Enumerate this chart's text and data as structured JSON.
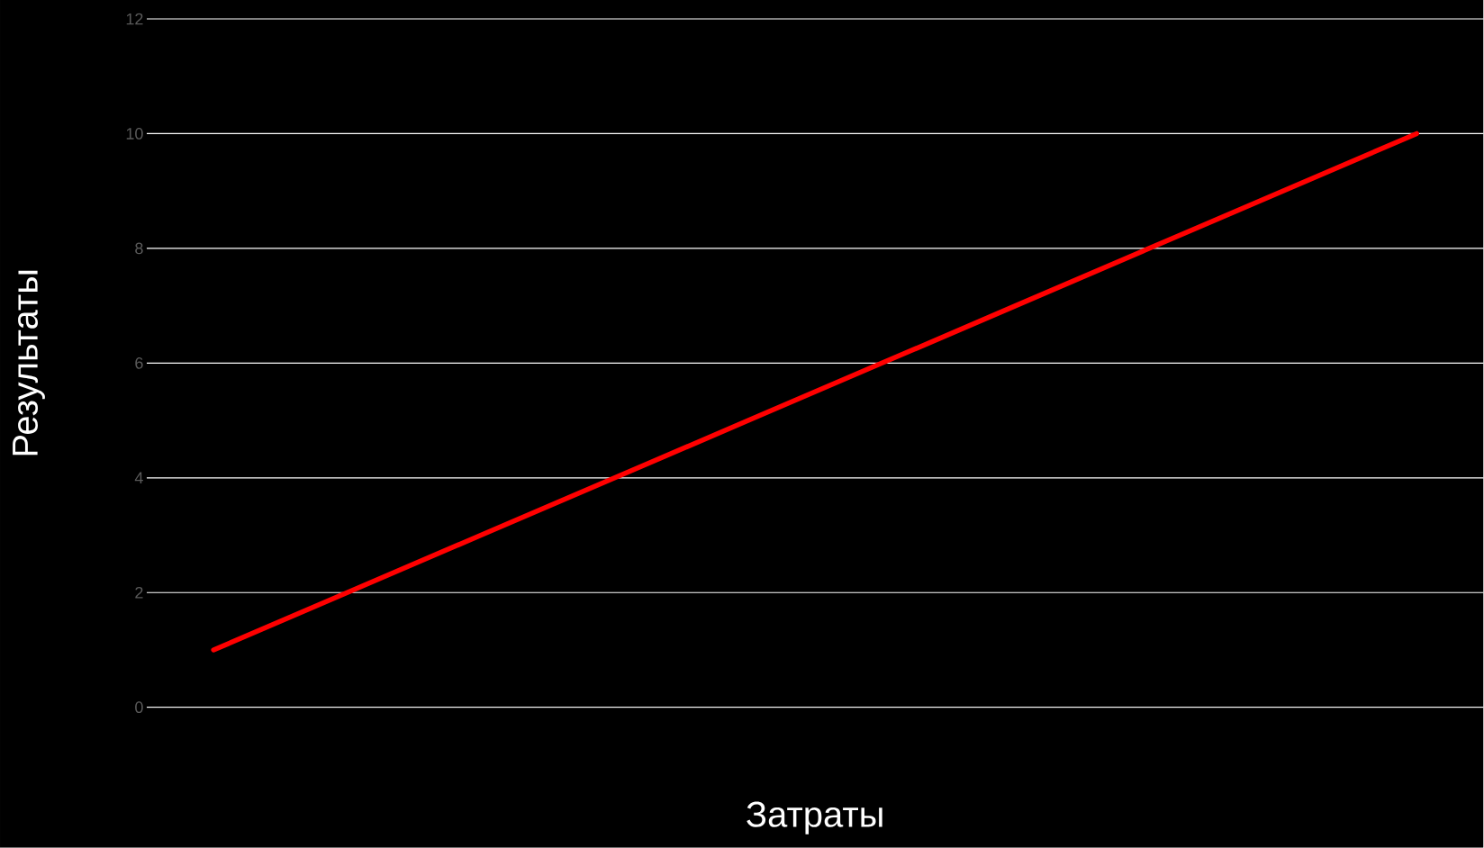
{
  "chart_data": {
    "type": "line",
    "xlabel": "Затраты",
    "ylabel": "Результаты",
    "categories": [
      null,
      null,
      null,
      null,
      null,
      null,
      null,
      null,
      null,
      null
    ],
    "series": [
      {
        "color": "#ff0000",
        "values": [
          1,
          2,
          3,
          4,
          5,
          6,
          7,
          8,
          9,
          10
        ]
      }
    ],
    "ylim": [
      0,
      12
    ],
    "yticks": [
      0,
      2,
      4,
      6,
      8,
      10,
      12
    ],
    "grid": "y",
    "tick_labels": "y",
    "marker": "none"
  }
}
